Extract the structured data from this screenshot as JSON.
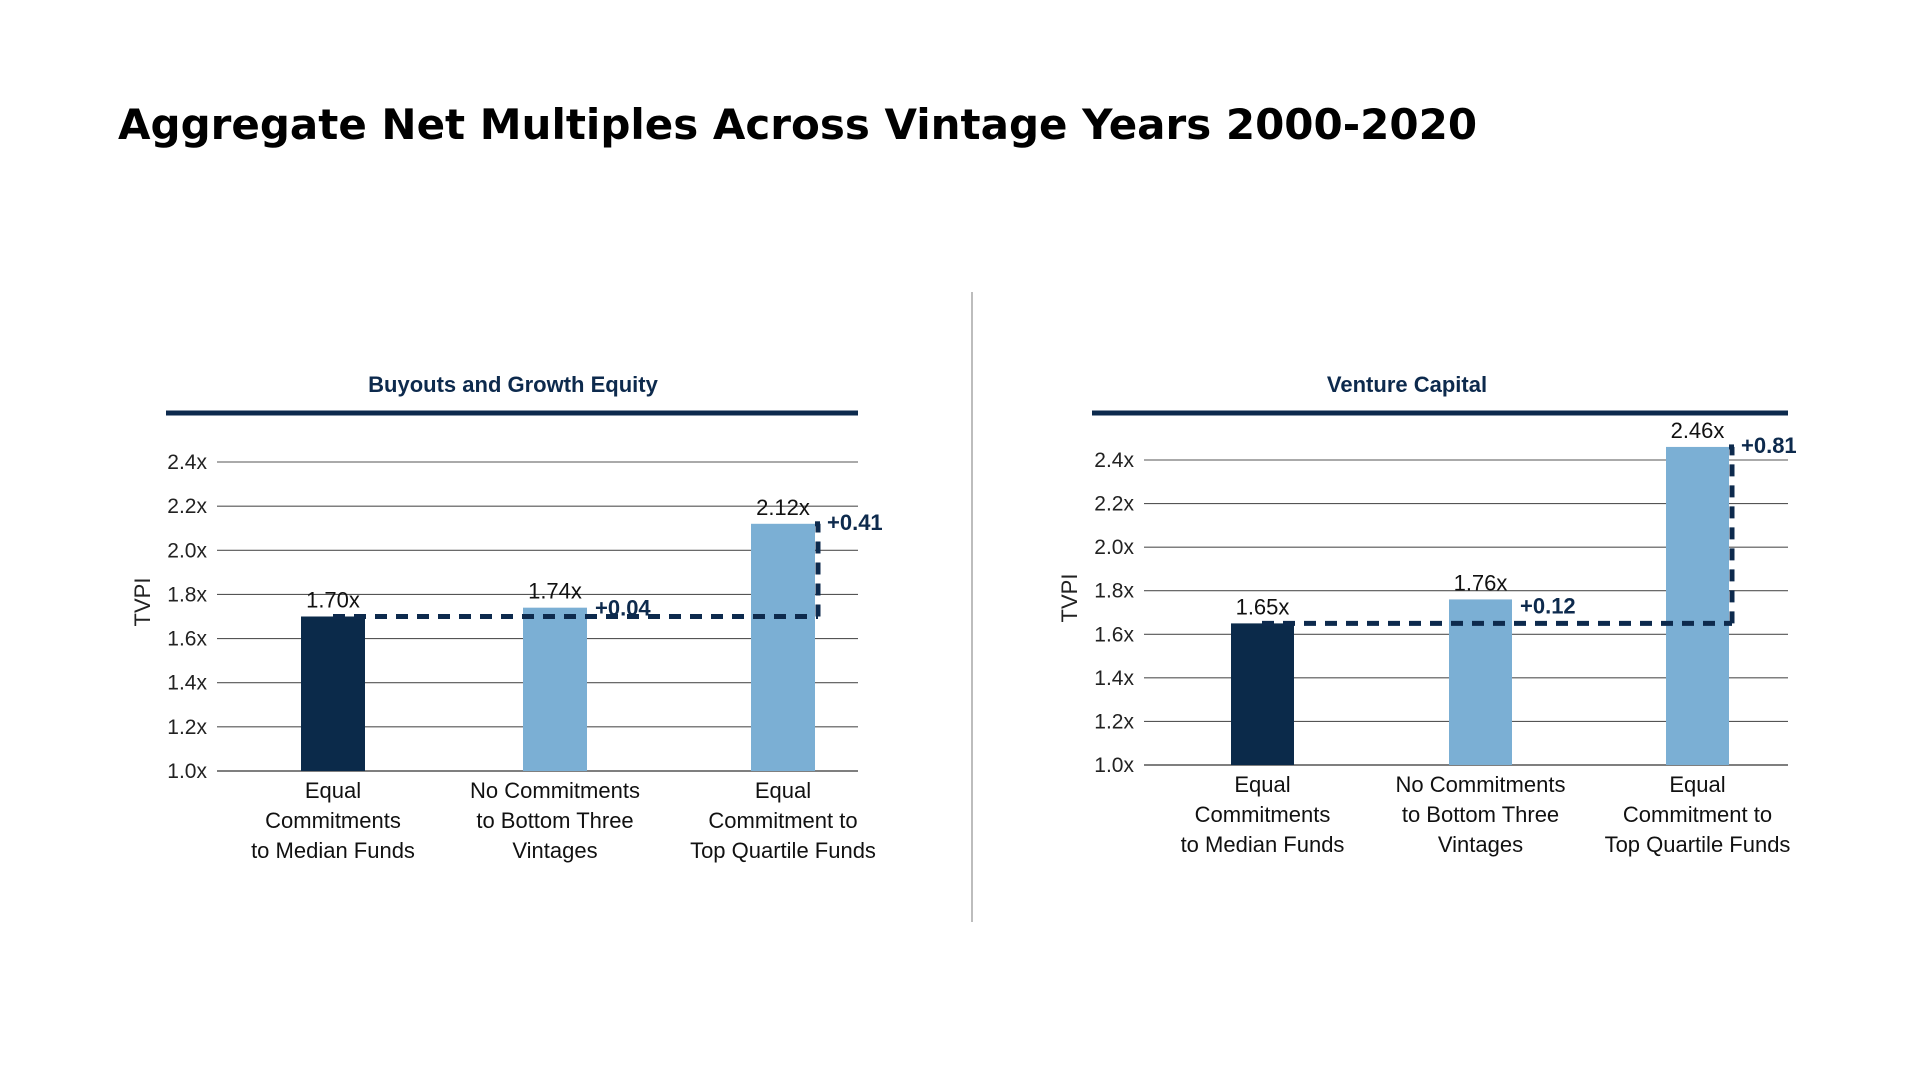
{
  "page": {
    "title": "Aggregate Net Multiples Across Vintage Years 2000-2020"
  },
  "colors": {
    "title_rule": "#0d2a4d",
    "bar_dark": "#0b2a4a",
    "bar_light": "#7bafd4",
    "grid": "#555555",
    "dash": "#0d2a4d"
  },
  "chart_data": [
    {
      "type": "bar",
      "title": "Buyouts and Growth Equity",
      "ylabel": "TVPI",
      "xlabel": "",
      "ylim": [
        1.0,
        2.4
      ],
      "yticks": [
        "1.0x",
        "1.2x",
        "1.4x",
        "1.6x",
        "1.8x",
        "2.0x",
        "2.2x",
        "2.4x"
      ],
      "grid": true,
      "categories": [
        [
          "Equal",
          "Commitments",
          "to Median Funds"
        ],
        [
          "No Commitments",
          "to Bottom Three",
          "Vintages"
        ],
        [
          "Equal",
          "Commitment to",
          "Top Quartile Funds"
        ]
      ],
      "values": [
        1.7,
        1.74,
        2.12
      ],
      "value_labels": [
        "1.70x",
        "1.74x",
        "2.12x"
      ],
      "baseline_value": 1.7,
      "annotations": [
        {
          "bar": 1,
          "text": "+0.04"
        },
        {
          "bar": 2,
          "text": "+0.41"
        }
      ]
    },
    {
      "type": "bar",
      "title": "Venture Capital",
      "ylabel": "TVPI",
      "xlabel": "",
      "ylim": [
        1.0,
        2.4
      ],
      "yticks": [
        "1.0x",
        "1.2x",
        "1.4x",
        "1.6x",
        "1.8x",
        "2.0x",
        "2.2x",
        "2.4x"
      ],
      "grid": true,
      "categories": [
        [
          "Equal",
          "Commitments",
          "to Median Funds"
        ],
        [
          "No Commitments",
          "to Bottom Three",
          "Vintages"
        ],
        [
          "Equal",
          "Commitment to",
          "Top Quartile Funds"
        ]
      ],
      "values": [
        1.65,
        1.76,
        2.46
      ],
      "value_labels": [
        "1.65x",
        "1.76x",
        "2.46x"
      ],
      "baseline_value": 1.65,
      "annotations": [
        {
          "bar": 1,
          "text": "+0.12"
        },
        {
          "bar": 2,
          "text": "+0.81"
        }
      ]
    }
  ]
}
